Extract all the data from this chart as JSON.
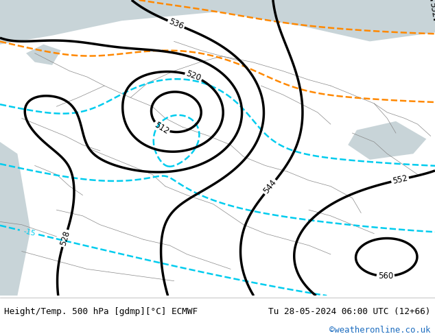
{
  "title_left": "Height/Temp. 500 hPa [gdmp][°C] ECMWF",
  "title_right": "Tu 28-05-2024 06:00 UTC (12+66)",
  "credit": "©weatheronline.co.uk",
  "bg_color": "#d6e8c8",
  "border_color": "#ffffff",
  "footer_bg": "#ffffff",
  "footer_text_color": "#000000",
  "credit_color": "#1a6bbf",
  "map_bg": "#d6e8c8",
  "sea_color": "#c8d4d8",
  "border_line_color": "#888888"
}
